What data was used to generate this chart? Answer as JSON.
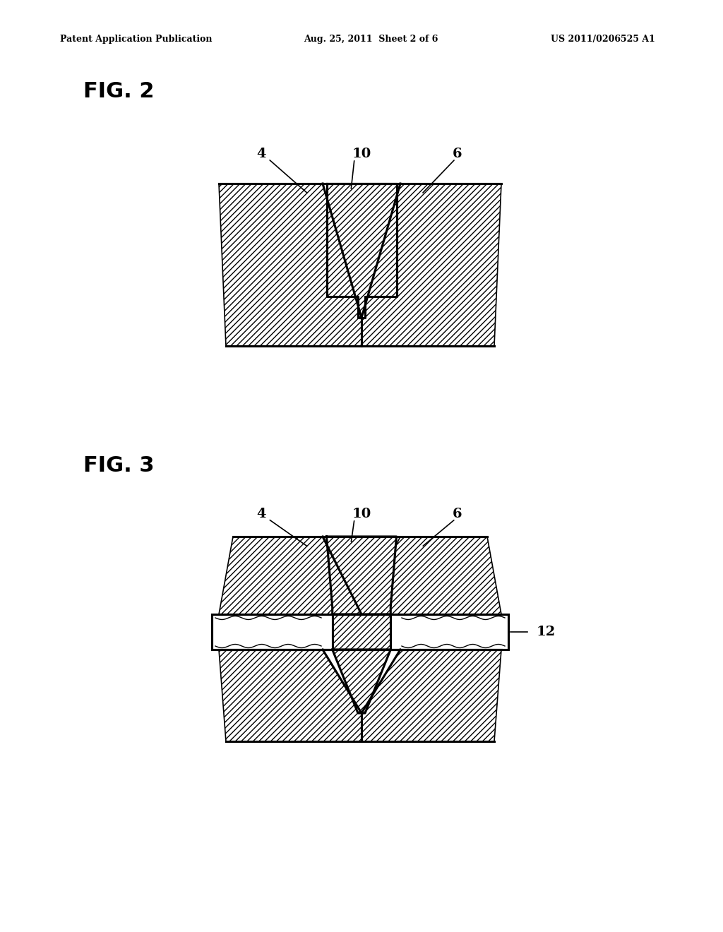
{
  "header_left": "Patent Application Publication",
  "header_center": "Aug. 25, 2011  Sheet 2 of 6",
  "header_right": "US 2011/0206525 A1",
  "fig2_label": "FIG. 2",
  "fig3_label": "FIG. 3",
  "label_4": "4",
  "label_6": "6",
  "label_10": "10",
  "label_12": "12",
  "bg_color": "#ffffff",
  "line_color": "#000000",
  "hatch_color": "#000000"
}
